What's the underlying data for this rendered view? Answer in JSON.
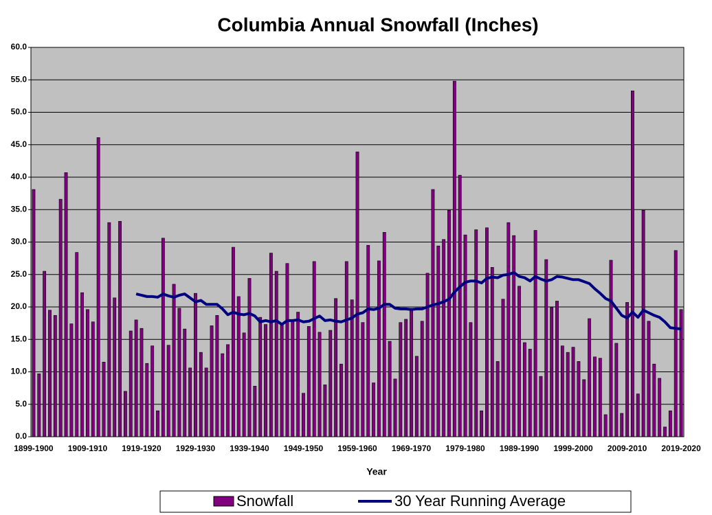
{
  "chart_data": {
    "type": "bar+line",
    "title": "Columbia Annual Snowfall (Inches)",
    "x_label": "Year",
    "categories": [
      "1899-1900",
      null,
      null,
      null,
      null,
      null,
      null,
      null,
      null,
      null,
      "1909-1910",
      null,
      null,
      null,
      null,
      null,
      null,
      null,
      null,
      null,
      "1919-1920",
      null,
      null,
      null,
      null,
      null,
      null,
      null,
      null,
      null,
      "1929-1930",
      null,
      null,
      null,
      null,
      null,
      null,
      null,
      null,
      null,
      "1939-1940",
      null,
      null,
      null,
      null,
      null,
      null,
      null,
      null,
      null,
      "1949-1950",
      null,
      null,
      null,
      null,
      null,
      null,
      null,
      null,
      null,
      "1959-1960",
      null,
      null,
      null,
      null,
      null,
      null,
      null,
      null,
      null,
      "1969-1970",
      null,
      null,
      null,
      null,
      null,
      null,
      null,
      null,
      null,
      "1979-1980",
      null,
      null,
      null,
      null,
      null,
      null,
      null,
      null,
      null,
      "1989-1990",
      null,
      null,
      null,
      null,
      null,
      null,
      null,
      null,
      null,
      "1999-2000",
      null,
      null,
      null,
      null,
      null,
      null,
      null,
      null,
      null,
      "2009-2010",
      null,
      null,
      null,
      null,
      null,
      null,
      null,
      null,
      null,
      "2019-2020"
    ],
    "series": [
      {
        "name": "Snowfall",
        "kind": "bar",
        "color": "#800080",
        "values": [
          38.1,
          9.7,
          25.5,
          19.5,
          18.7,
          36.6,
          40.7,
          17.4,
          28.4,
          22.2,
          19.6,
          17.7,
          46.1,
          11.5,
          33.0,
          21.4,
          33.2,
          7.0,
          16.3,
          18.0,
          16.7,
          11.3,
          14.0,
          4.0,
          30.6,
          14.1,
          23.5,
          19.8,
          16.6,
          10.6,
          22.1,
          13.0,
          10.6,
          17.1,
          18.7,
          12.8,
          14.2,
          29.2,
          21.6,
          16.0,
          24.4,
          7.8,
          18.4,
          17.3,
          28.3,
          25.5,
          17.4,
          26.7,
          17.9,
          19.2,
          6.7,
          17.0,
          27.0,
          16.1,
          8.0,
          16.4,
          21.3,
          11.2,
          27.0,
          21.1,
          43.9,
          17.6,
          29.5,
          8.3,
          27.1,
          31.5,
          14.7,
          8.9,
          17.6,
          18.1,
          19.8,
          12.4,
          17.8,
          25.2,
          38.1,
          29.4,
          30.4,
          34.9,
          54.8,
          40.3,
          31.1,
          17.6,
          31.9,
          4.0,
          32.2,
          26.1,
          11.6,
          21.2,
          33.0,
          31.0,
          23.2,
          14.5,
          13.5,
          31.8,
          9.3,
          27.3,
          19.9,
          20.9,
          14.0,
          13.0,
          13.8,
          11.6,
          8.8,
          18.2,
          12.3,
          12.1,
          3.4,
          27.2,
          14.4,
          3.6,
          20.7,
          53.3,
          6.6,
          34.9,
          17.8,
          11.2,
          9.0,
          1.5,
          4.0,
          28.7,
          19.6
        ]
      },
      {
        "name": "30 Year Running Average",
        "kind": "line",
        "color": "#000080",
        "values": [
          null,
          null,
          null,
          null,
          null,
          null,
          null,
          null,
          null,
          null,
          null,
          null,
          null,
          null,
          null,
          null,
          null,
          null,
          null,
          22.0,
          21.8,
          21.6,
          21.6,
          21.5,
          22.0,
          21.7,
          21.5,
          21.8,
          22.0,
          21.4,
          20.8,
          21.0,
          20.4,
          20.4,
          20.4,
          19.7,
          18.8,
          19.2,
          18.9,
          18.8,
          19.0,
          18.6,
          17.7,
          17.9,
          17.7,
          17.9,
          17.3,
          17.9,
          17.9,
          18.0,
          17.7,
          17.8,
          18.2,
          18.6,
          17.9,
          18.0,
          17.8,
          17.7,
          18.0,
          18.3,
          18.9,
          19.1,
          19.7,
          19.6,
          19.8,
          20.4,
          20.4,
          19.8,
          19.7,
          19.7,
          19.6,
          19.7,
          19.7,
          20.0,
          20.3,
          20.5,
          20.8,
          21.2,
          22.3,
          23.1,
          23.8,
          24.0,
          24.0,
          23.7,
          24.4,
          24.6,
          24.5,
          24.9,
          25.0,
          25.3,
          24.7,
          24.5,
          24.0,
          24.7,
          24.3,
          24.0,
          24.2,
          24.7,
          24.6,
          24.4,
          24.2,
          24.2,
          23.9,
          23.6,
          22.8,
          22.1,
          21.3,
          20.9,
          19.8,
          18.7,
          18.3,
          19.2,
          18.4,
          19.5,
          19.1,
          18.7,
          18.4,
          17.7,
          16.8,
          16.7,
          16.6
        ]
      }
    ],
    "ylim": [
      0,
      60
    ],
    "yticks": [
      {
        "value": 0,
        "label": "0.0"
      },
      {
        "value": 5,
        "label": "5.0"
      },
      {
        "value": 10,
        "label": "10.0"
      },
      {
        "value": 15,
        "label": "15.0"
      },
      {
        "value": 20,
        "label": "20.0"
      },
      {
        "value": 25,
        "label": "25.0"
      },
      {
        "value": 30,
        "label": "30.0"
      },
      {
        "value": 35,
        "label": "35.0"
      },
      {
        "value": 40,
        "label": "40.0"
      },
      {
        "value": 45,
        "label": "45.0"
      },
      {
        "value": 50,
        "label": "50.0"
      },
      {
        "value": 55,
        "label": "55.0"
      },
      {
        "value": 60,
        "label": "60.0"
      }
    ],
    "grid": true,
    "legend": "bottom"
  }
}
